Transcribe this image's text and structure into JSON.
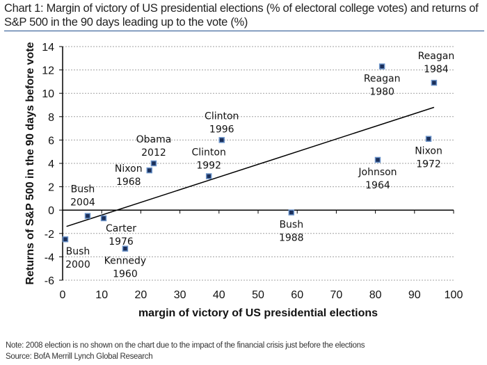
{
  "header": {
    "title_line1": "Chart 1: Margin of victory of US presidential elections (% of electoral college votes) and returns of",
    "title_line2": "S&P 500 in the 90 days leading up to the vote (%)"
  },
  "footer": {
    "note": "Note: 2008 election is no shown on the chart due to the impact of the financial crisis just before the elections",
    "source": "Source: BofA Merrill Lynch Global Research"
  },
  "colors": {
    "marker_fill": "#1a2f5a",
    "marker_edge": "#6b93c9",
    "trend": "#000000",
    "grid": "#a0a0a0",
    "title_rule": "#1f4e8c"
  },
  "chart_data": {
    "type": "scatter",
    "title": "Chart 1: Margin of victory of US presidential elections (% of electoral college votes) and returns of S&P 500 in the 90 days leading up to the vote (%)",
    "xlabel": "margin of victory of US presidential elections",
    "ylabel": "Returns of S&P 500 in the 90 days before vote",
    "xlim": [
      0,
      100
    ],
    "ylim": [
      -6,
      14
    ],
    "xticks": [
      0,
      10,
      20,
      30,
      40,
      50,
      60,
      70,
      80,
      90,
      100
    ],
    "yticks": [
      -6,
      -4,
      -2,
      0,
      2,
      4,
      6,
      8,
      10,
      12,
      14
    ],
    "grid": "horizontal-dotted",
    "points": [
      {
        "name": "Bush",
        "year": "2000",
        "x": 0.7,
        "y": -2.5,
        "label_pos": "below"
      },
      {
        "name": "Bush",
        "year": "2004",
        "x": 6.4,
        "y": -0.5,
        "label_pos": "above"
      },
      {
        "name": "Carter",
        "year": "1976",
        "x": 10.5,
        "y": -0.7,
        "label_pos": "below-right"
      },
      {
        "name": "Kennedy",
        "year": "1960",
        "x": 16.0,
        "y": -3.3,
        "label_pos": "below"
      },
      {
        "name": "Nixon",
        "year": "1968",
        "x": 22.2,
        "y": 3.4,
        "label_pos": "left"
      },
      {
        "name": "Obama",
        "year": "2012",
        "x": 23.3,
        "y": 4.0,
        "label_pos": "above"
      },
      {
        "name": "Clinton",
        "year": "1992",
        "x": 37.4,
        "y": 2.9,
        "label_pos": "above"
      },
      {
        "name": "Clinton",
        "year": "1996",
        "x": 40.7,
        "y": 6.0,
        "label_pos": "above"
      },
      {
        "name": "Bush",
        "year": "1988",
        "x": 58.5,
        "y": -0.2,
        "label_pos": "below"
      },
      {
        "name": "Johnson",
        "year": "1964",
        "x": 80.6,
        "y": 4.3,
        "label_pos": "below"
      },
      {
        "name": "Reagan",
        "year": "1980",
        "x": 81.7,
        "y": 12.3,
        "label_pos": "below"
      },
      {
        "name": "Nixon",
        "year": "1972",
        "x": 93.6,
        "y": 6.1,
        "label_pos": "below"
      },
      {
        "name": "Reagan",
        "year": "1984",
        "x": 95.0,
        "y": 10.9,
        "label_pos": "above"
      }
    ],
    "trendline": {
      "x": [
        1,
        95
      ],
      "y": [
        -1.4,
        8.8
      ]
    }
  }
}
